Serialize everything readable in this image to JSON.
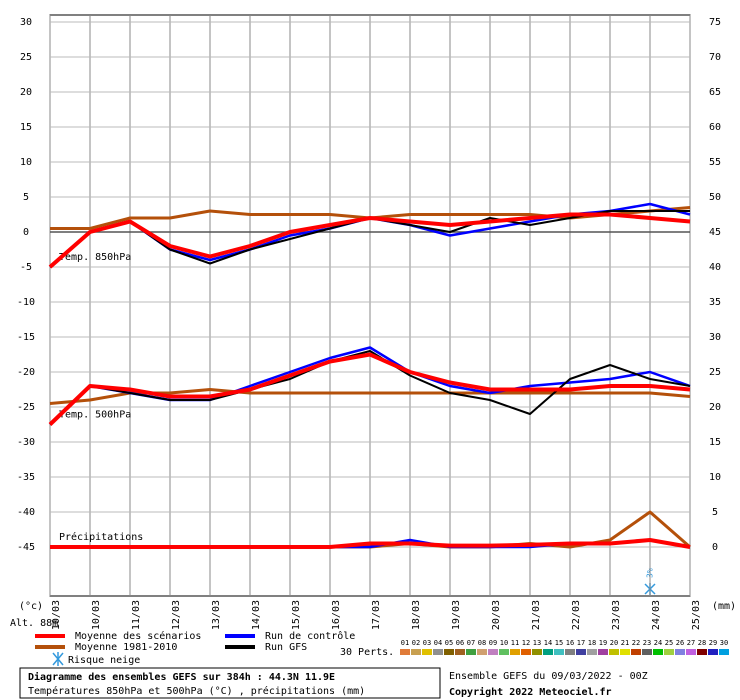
{
  "chart_data": {
    "type": "line",
    "categories": [
      "10/03",
      "10/03",
      "11/03",
      "12/03",
      "13/03",
      "14/03",
      "15/03",
      "16/03",
      "17/03",
      "18/03",
      "19/03",
      "20/03",
      "21/03",
      "22/03",
      "23/03",
      "24/03",
      "25/03"
    ],
    "ylim": [
      -52,
      31
    ],
    "yticks": [
      -45,
      -40,
      -35,
      -30,
      -25,
      -20,
      -15,
      -10,
      -5,
      0,
      5,
      10,
      15,
      20,
      25,
      30
    ],
    "y2lim": [
      -7,
      76
    ],
    "y2ticks": [
      0,
      5,
      10,
      15,
      20,
      25,
      30,
      35,
      40,
      45,
      50,
      55,
      60,
      65,
      70,
      75
    ],
    "grid": true,
    "y_unit_label": "(°c)",
    "y2_unit_label": "(mm)",
    "altitude": "Alt. 88m",
    "legend": [
      {
        "name": "Moyenne des scénarios",
        "color": "#ff0000"
      },
      {
        "name": "Moyenne 1981-2010",
        "color": "#b4500a"
      },
      {
        "name": "Run de contrôle",
        "color": "#0000ff"
      },
      {
        "name": "Run GFS",
        "color": "#000000"
      }
    ],
    "snow_label": "Risque neige",
    "snow_annotation": "3%",
    "perts_label": "30 Perts.",
    "perts": [
      {
        "label": "01",
        "color": "#e07b39"
      },
      {
        "label": "02",
        "color": "#c8a050"
      },
      {
        "label": "03",
        "color": "#e0c000"
      },
      {
        "label": "04",
        "color": "#909090"
      },
      {
        "label": "05",
        "color": "#806000"
      },
      {
        "label": "06",
        "color": "#a06020"
      },
      {
        "label": "07",
        "color": "#40a040"
      },
      {
        "label": "08",
        "color": "#d0a070"
      },
      {
        "label": "09",
        "color": "#c080c0"
      },
      {
        "label": "10",
        "color": "#60c060"
      },
      {
        "label": "11",
        "color": "#e0a000"
      },
      {
        "label": "12",
        "color": "#e06000"
      },
      {
        "label": "13",
        "color": "#909000"
      },
      {
        "label": "14",
        "color": "#00a080"
      },
      {
        "label": "15",
        "color": "#40c0c0"
      },
      {
        "label": "16",
        "color": "#808080"
      },
      {
        "label": "17",
        "color": "#4040a0"
      },
      {
        "label": "18",
        "color": "#a0a0a0"
      },
      {
        "label": "19",
        "color": "#a040a0"
      },
      {
        "label": "20",
        "color": "#c0c000"
      },
      {
        "label": "21",
        "color": "#e0e000"
      },
      {
        "label": "22",
        "color": "#c04000"
      },
      {
        "label": "23",
        "color": "#606060"
      },
      {
        "label": "24",
        "color": "#00c000"
      },
      {
        "label": "25",
        "color": "#a0d040"
      },
      {
        "label": "26",
        "color": "#8080e0"
      },
      {
        "label": "27",
        "color": "#c060e0"
      },
      {
        "label": "28",
        "color": "#800000"
      },
      {
        "label": "29",
        "color": "#2020c0"
      },
      {
        "label": "30",
        "color": "#00a0e0"
      }
    ],
    "panels": [
      {
        "label": "Temp. 850hPa",
        "series": [
          {
            "values": [
              -5,
              0,
              1.5,
              -2,
              -3.5,
              -2,
              0,
              1,
              2,
              1.5,
              1,
              1.5,
              2,
              2.5,
              2.5,
              2,
              1.5
            ]
          },
          {
            "values": [
              0.5,
              0.5,
              2,
              2,
              3,
              2.5,
              2.5,
              2.5,
              2,
              2.5,
              2.5,
              2.5,
              2.5,
              2,
              2.5,
              3,
              3.5
            ]
          },
          {
            "values": [
              -5,
              0,
              1.5,
              -2.5,
              -4,
              -2.5,
              -0.5,
              0.5,
              2,
              1,
              -0.5,
              0.5,
              1.5,
              2.5,
              3,
              4,
              2.5
            ]
          },
          {
            "values": [
              -5,
              0,
              1.5,
              -2.5,
              -4.5,
              -2.5,
              -1,
              0.5,
              2,
              1,
              0,
              2,
              1,
              2,
              3,
              3,
              3
            ]
          }
        ]
      },
      {
        "label": "Temp. 500hPa",
        "series": [
          {
            "values": [
              -27.5,
              -22,
              -22.5,
              -23.5,
              -23.5,
              -22.5,
              -20.5,
              -18.5,
              -17.5,
              -20,
              -21.5,
              -22.5,
              -22.5,
              -22.5,
              -22,
              -22,
              -22.5
            ]
          },
          {
            "values": [
              -24.5,
              -24,
              -23,
              -23,
              -22.5,
              -23,
              -23,
              -23,
              -23,
              -23,
              -23,
              -23,
              -23,
              -23,
              -23,
              -23,
              -23.5
            ]
          },
          {
            "values": [
              -27.5,
              -22,
              -23,
              -24,
              -24,
              -22,
              -20,
              -18,
              -16.5,
              -20,
              -22,
              -23,
              -22,
              -21.5,
              -21,
              -20,
              -22
            ]
          },
          {
            "values": [
              -27.5,
              -22,
              -23,
              -24,
              -24,
              -22.5,
              -21,
              -18.5,
              -17,
              -20.5,
              -23,
              -24,
              -26,
              -21,
              -19,
              -21,
              -22
            ]
          }
        ]
      },
      {
        "label": "Précipitations",
        "axis": "y2",
        "series": [
          {
            "values": [
              0,
              0,
              0,
              0,
              0,
              0,
              0,
              0,
              0.5,
              0.5,
              0.2,
              0.2,
              0.3,
              0.5,
              0.5,
              1,
              0
            ]
          },
          {
            "values": [
              0,
              0,
              0,
              0,
              0,
              0,
              0,
              0,
              0,
              0.5,
              0,
              0,
              0.5,
              0,
              1,
              5,
              0
            ]
          },
          {
            "values": [
              0,
              0,
              0,
              0,
              0,
              0,
              0,
              0,
              0,
              1,
              0,
              0,
              0,
              0.5,
              0.5,
              1,
              0
            ]
          }
        ]
      }
    ],
    "footer": {
      "title": "Diagramme des ensembles GEFS sur 384h : 44.3N 11.9E",
      "subtitle": "Températures 850hPa et 500hPa (°C) , précipitations (mm)",
      "run": "Ensemble GEFS du 09/03/2022 - 00Z",
      "copyright": "Copyright 2022 Meteociel.fr"
    }
  }
}
